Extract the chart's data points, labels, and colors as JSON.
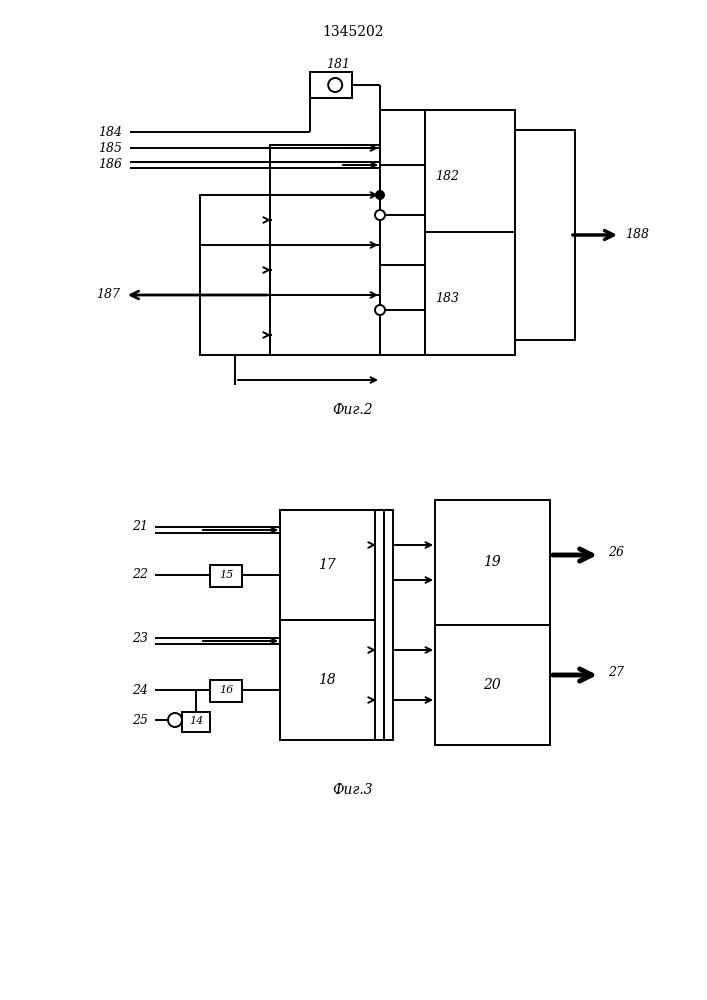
{
  "title": "1345202",
  "fig2_label": "Фиг.2",
  "fig3_label": "Фиг.3",
  "bg_color": "#ffffff",
  "lw": 1.4
}
